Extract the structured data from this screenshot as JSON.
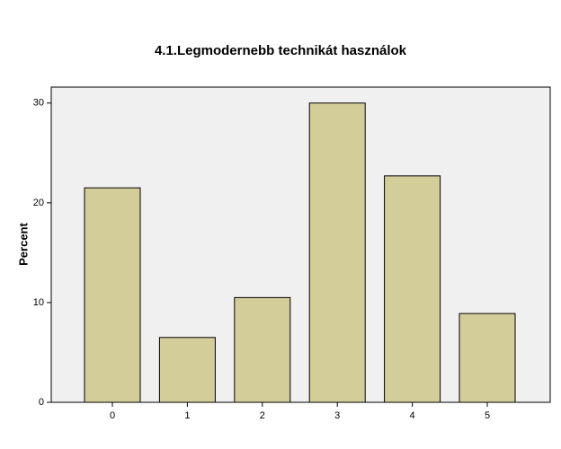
{
  "chart_data": {
    "type": "bar",
    "title": "4.1.Legmodernebb technikát használok",
    "y_label": "Percent",
    "categories": [
      "0",
      "1",
      "2",
      "3",
      "4",
      "5"
    ],
    "values": [
      21.5,
      6.5,
      10.5,
      30,
      22.7,
      8.9
    ],
    "color": "#d3ce99",
    "ylim": [
      0,
      31.6
    ],
    "yticks": [
      0,
      10,
      20,
      30
    ],
    "grid": false
  }
}
